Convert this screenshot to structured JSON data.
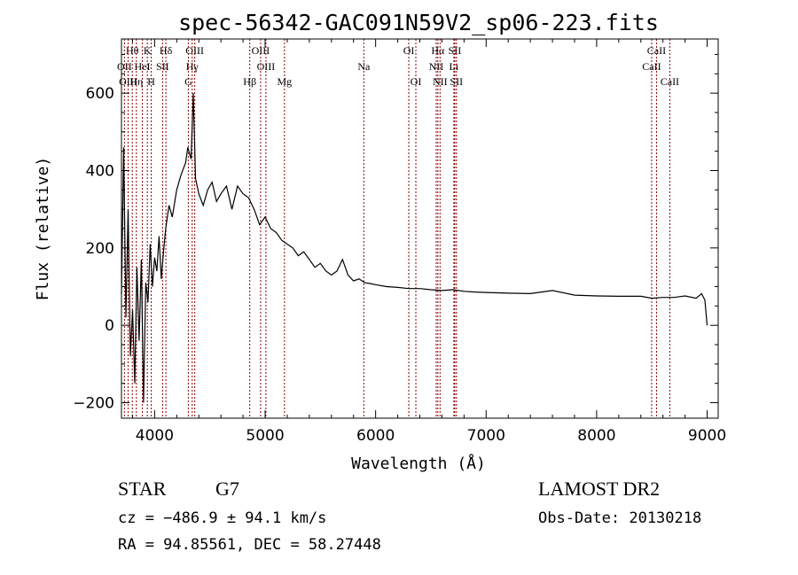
{
  "chart_data": {
    "type": "line",
    "title": "spec-56342-GAC091N59V2_sp06-223.fits",
    "xlabel": "Wavelength (Å)",
    "ylabel": "Flux (relative)",
    "xlim": [
      3700,
      9100
    ],
    "ylim": [
      -240,
      740
    ],
    "xticks": [
      4000,
      5000,
      6000,
      7000,
      8000,
      9000
    ],
    "yticks": [
      -200,
      0,
      200,
      400,
      600
    ],
    "grid": false,
    "line_color": "#000000",
    "marker_color": "#8b0000",
    "series": [
      {
        "x": [
          3700,
          3720,
          3740,
          3760,
          3780,
          3800,
          3820,
          3840,
          3860,
          3880,
          3900,
          3920,
          3940,
          3960,
          3980,
          4000,
          4020,
          4040,
          4060,
          4080,
          4100,
          4130,
          4160,
          4200,
          4240,
          4280,
          4300,
          4330,
          4350,
          4370,
          4400,
          4440,
          4480,
          4520,
          4560,
          4600,
          4650,
          4700,
          4750,
          4800,
          4850,
          4900,
          4950,
          5000,
          5050,
          5100,
          5150,
          5200,
          5250,
          5300,
          5350,
          5400,
          5450,
          5500,
          5550,
          5600,
          5650,
          5700,
          5750,
          5800,
          5850,
          5900,
          5950,
          6000,
          6100,
          6200,
          6300,
          6400,
          6500,
          6600,
          6700,
          6800,
          6900,
          7000,
          7200,
          7400,
          7600,
          7800,
          8000,
          8200,
          8400,
          8500,
          8600,
          8700,
          8800,
          8900,
          8950,
          8980,
          9000
        ],
        "y": [
          80,
          460,
          20,
          300,
          -80,
          40,
          -150,
          150,
          -40,
          170,
          -200,
          110,
          60,
          210,
          100,
          175,
          140,
          230,
          120,
          190,
          250,
          310,
          280,
          350,
          390,
          420,
          460,
          430,
          600,
          380,
          340,
          310,
          350,
          370,
          320,
          340,
          360,
          300,
          360,
          340,
          330,
          300,
          260,
          280,
          250,
          240,
          220,
          210,
          200,
          180,
          190,
          170,
          150,
          160,
          140,
          130,
          140,
          170,
          130,
          115,
          120,
          110,
          108,
          105,
          100,
          98,
          95,
          95,
          92,
          90,
          92,
          88,
          86,
          85,
          83,
          82,
          90,
          78,
          76,
          75,
          75,
          70,
          72,
          72,
          76,
          70,
          82,
          65,
          0
        ]
      }
    ],
    "line_markers": [
      {
        "name": "Hθ",
        "wl": 3798,
        "row": 0
      },
      {
        "name": "K",
        "wl": 3934,
        "row": 0
      },
      {
        "name": "Hδ",
        "wl": 4102,
        "row": 0
      },
      {
        "name": "OIII",
        "wl": 4363,
        "row": 0
      },
      {
        "name": "OIII",
        "wl": 4959,
        "row": 0
      },
      {
        "name": "OI",
        "wl": 6300,
        "row": 0
      },
      {
        "name": "Hα",
        "wl": 6563,
        "row": 0
      },
      {
        "name": "SII",
        "wl": 6716,
        "row": 0
      },
      {
        "name": "CaII",
        "wl": 8542,
        "row": 0
      },
      {
        "name": "OII",
        "wl": 3727,
        "row": 1
      },
      {
        "name": "HeI",
        "wl": 3889,
        "row": 1
      },
      {
        "name": "SII",
        "wl": 4072,
        "row": 1
      },
      {
        "name": "Hγ",
        "wl": 4340,
        "row": 1
      },
      {
        "name": "OIII",
        "wl": 5007,
        "row": 1
      },
      {
        "name": "Na",
        "wl": 5893,
        "row": 1
      },
      {
        "name": "NII",
        "wl": 6548,
        "row": 1
      },
      {
        "name": "Li",
        "wl": 6708,
        "row": 1
      },
      {
        "name": "CaII",
        "wl": 8498,
        "row": 1
      },
      {
        "name": "OIII",
        "wl": 3760,
        "row": 2
      },
      {
        "name": "Hη",
        "wl": 3835,
        "row": 2
      },
      {
        "name": "H",
        "wl": 3969,
        "row": 2
      },
      {
        "name": "G",
        "wl": 4305,
        "row": 2
      },
      {
        "name": "Hβ",
        "wl": 4861,
        "row": 2
      },
      {
        "name": "Mg",
        "wl": 5175,
        "row": 2
      },
      {
        "name": "OI",
        "wl": 6364,
        "row": 2
      },
      {
        "name": "NII",
        "wl": 6583,
        "row": 2
      },
      {
        "name": "SII",
        "wl": 6731,
        "row": 2
      },
      {
        "name": "CaII",
        "wl": 8662,
        "row": 2
      }
    ]
  },
  "info": {
    "class": "STAR",
    "subclass": "G7",
    "survey": "LAMOST DR2",
    "cz": "cz = −486.9 ± 94.1 km/s",
    "obsdate": "Obs-Date: 20130218",
    "coords": "RA =  94.85561, DEC =  58.27448"
  }
}
